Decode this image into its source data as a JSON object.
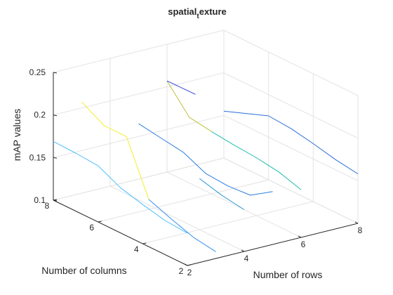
{
  "chart_data": {
    "type": "line",
    "projection": "3d",
    "title": {
      "main": "spatial",
      "subscript": "t",
      "rest": "exture"
    },
    "xlabel": "Number of rows",
    "ylabel": "Number of columns",
    "zlabel": "mAP values",
    "xlim": [
      2,
      8
    ],
    "ylim": [
      2,
      8
    ],
    "zlim": [
      0.1,
      0.25
    ],
    "xticks": [
      2,
      4,
      6,
      8
    ],
    "yticks": [
      2,
      4,
      6,
      8
    ],
    "zticks": [
      0.1,
      0.15,
      0.2,
      0.25
    ],
    "xtick_labels": [
      "2",
      "4",
      "6",
      "8"
    ],
    "ytick_labels": [
      "2",
      "4",
      "6",
      "8"
    ],
    "ztick_labels": [
      "0.1",
      "0.15",
      "0.2",
      "0.25"
    ],
    "grid": true,
    "series": [
      {
        "color": "#4dbfff",
        "points": [
          [
            2,
            2,
            0.138
          ],
          [
            2,
            3,
            0.14
          ],
          [
            2,
            4,
            0.146
          ],
          [
            2,
            5,
            0.153
          ],
          [
            2,
            6,
            0.166
          ],
          [
            2,
            7,
            0.168
          ],
          [
            2,
            8,
            0.169
          ]
        ]
      },
      {
        "color": "#3a8ff0",
        "points": [
          [
            3,
            2,
            0.108
          ],
          [
            3,
            3,
            0.112
          ],
          [
            3,
            4,
            0.121
          ],
          [
            3,
            5,
            0.131
          ]
        ]
      },
      {
        "color": "#f5ee2a",
        "points": [
          [
            3,
            5,
            0.131
          ],
          [
            3,
            6,
            0.192
          ],
          [
            3,
            7,
            0.192
          ],
          [
            3,
            8,
            0.207
          ]
        ]
      },
      {
        "color": "#2e9ad6",
        "points": [
          [
            4,
            2,
            0.149
          ],
          [
            4,
            3,
            0.153
          ],
          [
            4,
            4,
            0.16
          ]
        ]
      },
      {
        "color": "#2a7de1",
        "points": [
          [
            5,
            2,
            0.162
          ],
          [
            5,
            3,
            0.145
          ],
          [
            5,
            4,
            0.143
          ],
          [
            5,
            5,
            0.145
          ],
          [
            5,
            6,
            0.157
          ],
          [
            5,
            7,
            0.161
          ],
          [
            5,
            8,
            0.165
          ]
        ]
      },
      {
        "color": "#1dbdb0",
        "points": [
          [
            6,
            2,
            0.156
          ],
          [
            6,
            3,
            0.164
          ],
          [
            6,
            4,
            0.168
          ],
          [
            6,
            5,
            0.17
          ],
          [
            6,
            6,
            0.173
          ]
        ]
      },
      {
        "color": "#bcc23b",
        "points": [
          [
            6,
            6,
            0.173
          ],
          [
            6,
            7,
            0.177
          ],
          [
            6,
            8,
            0.207
          ]
        ]
      },
      {
        "color": "#3344e0",
        "points": [
          [
            6,
            8,
            0.207
          ],
          [
            7,
            8,
            0.183
          ]
        ]
      },
      {
        "color": "#2b6ed8",
        "points": [
          [
            8,
            2,
            0.158
          ],
          [
            8,
            3,
            0.162
          ],
          [
            8,
            4,
            0.168
          ],
          [
            8,
            5,
            0.173
          ],
          [
            8,
            6,
            0.175
          ],
          [
            8,
            7,
            0.165
          ],
          [
            8,
            8,
            0.155
          ]
        ]
      }
    ]
  }
}
